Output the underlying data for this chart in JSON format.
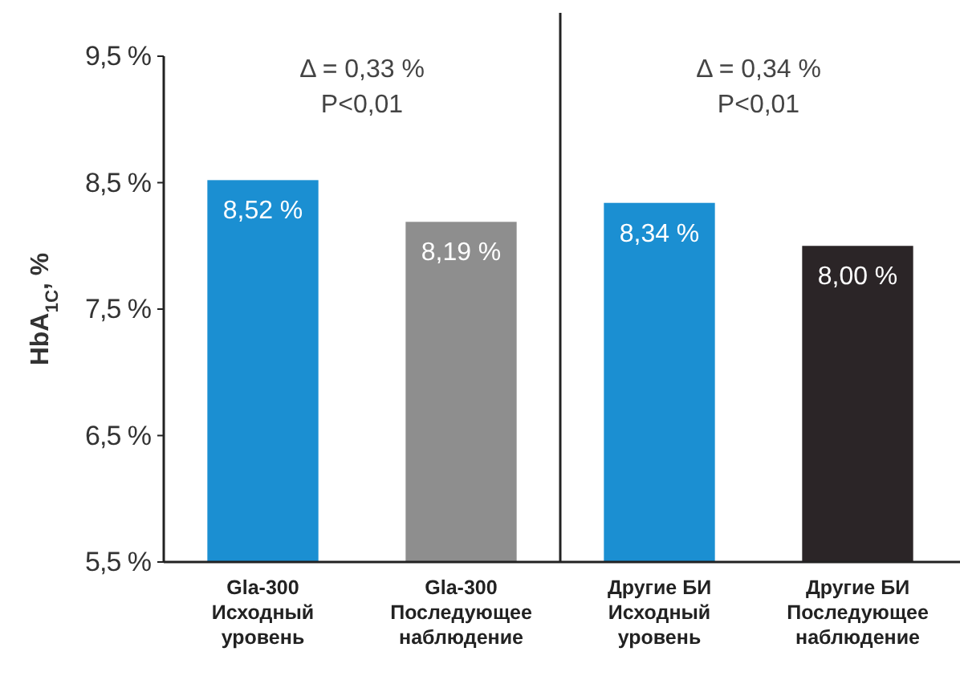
{
  "chart_data": {
    "type": "bar",
    "ylabel": "HbA$_{1C}$, %",
    "categories": [
      "Gla-300\nИсходный\nуровень",
      "Gla-300\nПоследующее\nнаблюдение",
      "Другие БИ\nИсходный\nуровень",
      "Другие БИ\nПоследующее\nнаблюдение"
    ],
    "values": [
      8.52,
      8.19,
      8.34,
      8.0
    ],
    "colors": [
      "#1b8fd2",
      "#8e8e8e",
      "#1b8fd2",
      "#2b2527"
    ],
    "value_labels": [
      "8,52 %",
      "8,19 %",
      "8,34 %",
      "8,00 %"
    ],
    "ylim": [
      5.5,
      9.5
    ],
    "yticks": [
      {
        "value": 5.5,
        "label": "5,5 %"
      },
      {
        "value": 6.5,
        "label": "6,5 %"
      },
      {
        "value": 7.5,
        "label": "7,5 %"
      },
      {
        "value": 8.5,
        "label": "8,5 %"
      },
      {
        "value": 9.5,
        "label": "9,5 %"
      }
    ],
    "annotations": [
      "Δ = 0,33 %\nP<0,01",
      "Δ = 0,34 %\nP<0,01"
    ],
    "grid": false
  }
}
